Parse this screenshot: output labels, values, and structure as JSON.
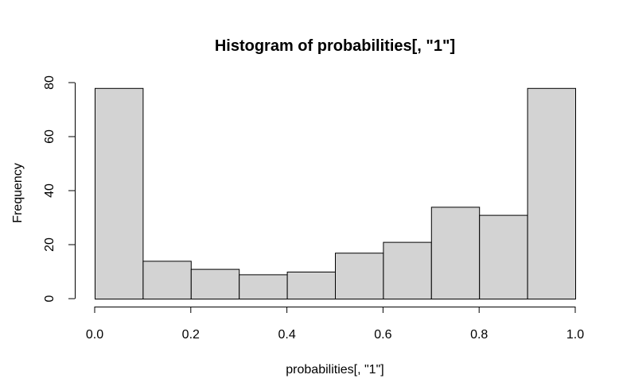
{
  "chart_data": {
    "type": "bar",
    "title": "Histogram of probabilities[, \"1\"]",
    "xlabel": "probabilities[, \"1\"]",
    "ylabel": "Frequency",
    "bins": [
      {
        "start": 0.0,
        "end": 0.1,
        "count": 78
      },
      {
        "start": 0.1,
        "end": 0.2,
        "count": 14
      },
      {
        "start": 0.2,
        "end": 0.3,
        "count": 11
      },
      {
        "start": 0.3,
        "end": 0.4,
        "count": 9
      },
      {
        "start": 0.4,
        "end": 0.5,
        "count": 10
      },
      {
        "start": 0.5,
        "end": 0.6,
        "count": 17
      },
      {
        "start": 0.6,
        "end": 0.7,
        "count": 21
      },
      {
        "start": 0.7,
        "end": 0.8,
        "count": 34
      },
      {
        "start": 0.8,
        "end": 0.9,
        "count": 31
      },
      {
        "start": 0.9,
        "end": 1.0,
        "count": 78
      }
    ],
    "xlim": [
      0.0,
      1.0
    ],
    "ylim": [
      0,
      80
    ],
    "x_ticks": [
      "0.0",
      "0.2",
      "0.4",
      "0.6",
      "0.8",
      "1.0"
    ],
    "y_ticks": [
      "0",
      "20",
      "40",
      "60",
      "80"
    ],
    "grid": false,
    "bar_fill": "#d3d3d3",
    "bar_stroke": "#000000"
  }
}
